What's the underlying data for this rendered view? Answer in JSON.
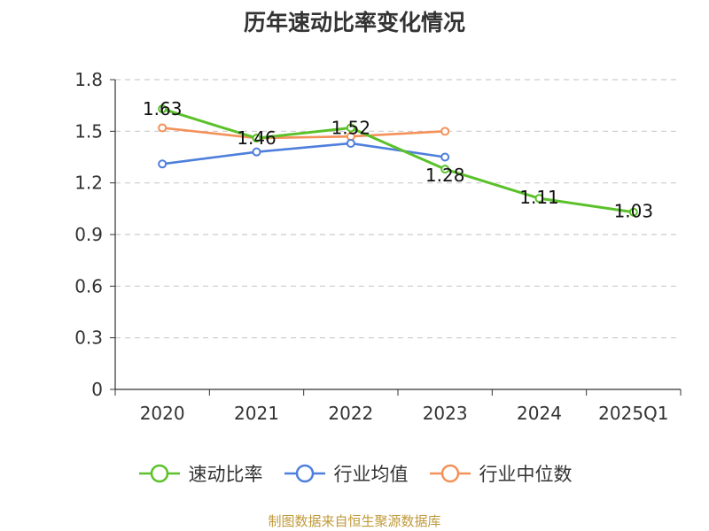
{
  "chart_data": {
    "type": "line",
    "title": "历年速动比率变化情况",
    "categories": [
      "2020",
      "2021",
      "2022",
      "2023",
      "2024",
      "2025Q1"
    ],
    "ylim": [
      0,
      1.8
    ],
    "yticks": [
      "0",
      "0.3",
      "0.6",
      "0.9",
      "1.2",
      "1.5",
      "1.8"
    ],
    "grid": true,
    "legend_position": "bottom",
    "series": [
      {
        "name": "速动比率",
        "color": "#5bc12a",
        "values": [
          1.63,
          1.46,
          1.52,
          1.28,
          1.11,
          1.03
        ],
        "labels": [
          "1.63",
          "1.46",
          "1.52",
          "1.28",
          "1.11",
          "1.03"
        ]
      },
      {
        "name": "行业均值",
        "color": "#4e7fdc",
        "values": [
          1.31,
          1.38,
          1.43,
          1.35,
          null,
          null
        ]
      },
      {
        "name": "行业中位数",
        "color": "#f4915a",
        "values": [
          1.52,
          1.46,
          1.47,
          1.5,
          null,
          null
        ]
      }
    ]
  },
  "source": "制图数据来自恒生聚源数据库"
}
